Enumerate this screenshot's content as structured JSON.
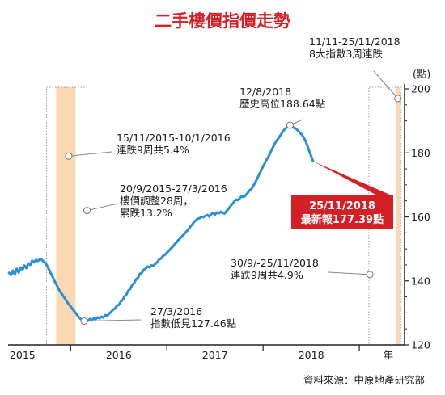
{
  "chart_data": {
    "type": "line",
    "title": "二手樓價指價走勢",
    "ylabel": "(點)",
    "xlabel": "年",
    "ylim": [
      120,
      200
    ],
    "yticks": [
      120,
      140,
      160,
      180,
      200
    ],
    "xlim": [
      2014.85,
      2018.97
    ],
    "year_labels": [
      {
        "label": "2015",
        "x": 2015.0
      },
      {
        "label": "2016",
        "x": 2016.0
      },
      {
        "label": "2017",
        "x": 2017.0
      },
      {
        "label": "2018",
        "x": 2018.0
      }
    ],
    "year_separators": [
      2015.5,
      2016.5,
      2017.5,
      2018.5
    ],
    "series": [
      {
        "color": "#2b8fd6",
        "points": [
          [
            2014.86,
            142.5
          ],
          [
            2014.88,
            141.8
          ],
          [
            2014.9,
            143.2
          ],
          [
            2014.92,
            142.0
          ],
          [
            2014.94,
            143.8
          ],
          [
            2014.96,
            142.6
          ],
          [
            2014.98,
            144.2
          ],
          [
            2015.0,
            143.5
          ],
          [
            2015.02,
            144.8
          ],
          [
            2015.04,
            144.0
          ],
          [
            2015.06,
            145.5
          ],
          [
            2015.08,
            145.0
          ],
          [
            2015.1,
            146.3
          ],
          [
            2015.12,
            145.8
          ],
          [
            2015.14,
            146.6
          ],
          [
            2015.16,
            146.2
          ],
          [
            2015.18,
            146.8
          ],
          [
            2015.2,
            146.6
          ],
          [
            2015.22,
            146.0
          ],
          [
            2015.24,
            145.6
          ],
          [
            2015.26,
            144.4
          ],
          [
            2015.28,
            143.3
          ],
          [
            2015.3,
            142.0
          ],
          [
            2015.32,
            140.8
          ],
          [
            2015.34,
            139.5
          ],
          [
            2015.36,
            138.4
          ],
          [
            2015.38,
            137.2
          ],
          [
            2015.4,
            136.3
          ],
          [
            2015.42,
            135.4
          ],
          [
            2015.44,
            134.5
          ],
          [
            2015.46,
            133.6
          ],
          [
            2015.48,
            132.7
          ],
          [
            2015.5,
            132.0
          ],
          [
            2015.52,
            131.2
          ],
          [
            2015.54,
            130.4
          ],
          [
            2015.56,
            129.7
          ],
          [
            2015.58,
            128.8
          ],
          [
            2015.6,
            128.2
          ],
          [
            2015.62,
            127.8
          ],
          [
            2015.64,
            127.46
          ],
          [
            2015.66,
            128.0
          ],
          [
            2015.68,
            127.5
          ],
          [
            2015.7,
            128.1
          ],
          [
            2015.72,
            127.7
          ],
          [
            2015.74,
            128.3
          ],
          [
            2015.76,
            128.0
          ],
          [
            2015.78,
            128.6
          ],
          [
            2015.8,
            128.3
          ],
          [
            2015.82,
            128.8
          ],
          [
            2015.84,
            128.5
          ],
          [
            2015.86,
            129.3
          ],
          [
            2015.88,
            129.0
          ],
          [
            2015.9,
            129.8
          ],
          [
            2015.92,
            130.3
          ],
          [
            2015.94,
            131.0
          ],
          [
            2015.96,
            131.3
          ],
          [
            2015.98,
            132.2
          ],
          [
            2016.0,
            132.5
          ],
          [
            2016.02,
            133.5
          ],
          [
            2016.04,
            134.0
          ],
          [
            2016.06,
            135.2
          ],
          [
            2016.08,
            135.8
          ],
          [
            2016.1,
            137.0
          ],
          [
            2016.12,
            137.5
          ],
          [
            2016.14,
            138.8
          ],
          [
            2016.16,
            139.3
          ],
          [
            2016.18,
            140.5
          ],
          [
            2016.2,
            141.0
          ],
          [
            2016.22,
            142.2
          ],
          [
            2016.24,
            142.5
          ],
          [
            2016.26,
            143.5
          ],
          [
            2016.28,
            143.8
          ],
          [
            2016.3,
            144.5
          ],
          [
            2016.32,
            144.2
          ],
          [
            2016.34,
            144.9
          ],
          [
            2016.36,
            144.6
          ],
          [
            2016.38,
            145.4
          ],
          [
            2016.4,
            145.8
          ],
          [
            2016.42,
            146.7
          ],
          [
            2016.44,
            147.0
          ],
          [
            2016.46,
            147.8
          ],
          [
            2016.48,
            148.2
          ],
          [
            2016.5,
            148.8
          ],
          [
            2016.52,
            149.4
          ],
          [
            2016.54,
            150.1
          ],
          [
            2016.56,
            150.6
          ],
          [
            2016.58,
            151.5
          ],
          [
            2016.6,
            152.0
          ],
          [
            2016.62,
            152.8
          ],
          [
            2016.64,
            153.3
          ],
          [
            2016.66,
            154.0
          ],
          [
            2016.68,
            154.6
          ],
          [
            2016.7,
            155.3
          ],
          [
            2016.72,
            155.9
          ],
          [
            2016.74,
            156.8
          ],
          [
            2016.76,
            157.5
          ],
          [
            2016.78,
            158.3
          ],
          [
            2016.8,
            158.9
          ],
          [
            2016.82,
            159.4
          ],
          [
            2016.84,
            159.6
          ],
          [
            2016.86,
            160.0
          ],
          [
            2016.88,
            159.9
          ],
          [
            2016.9,
            160.3
          ],
          [
            2016.92,
            160.6
          ],
          [
            2016.94,
            160.1
          ],
          [
            2016.96,
            160.8
          ],
          [
            2016.98,
            161.2
          ],
          [
            2017.0,
            160.7
          ],
          [
            2017.02,
            161.4
          ],
          [
            2017.04,
            161.1
          ],
          [
            2017.06,
            161.6
          ],
          [
            2017.08,
            161.3
          ],
          [
            2017.1,
            161.0
          ],
          [
            2017.12,
            161.8
          ],
          [
            2017.14,
            162.5
          ],
          [
            2017.16,
            163.3
          ],
          [
            2017.18,
            164.0
          ],
          [
            2017.2,
            164.8
          ],
          [
            2017.22,
            165.4
          ],
          [
            2017.24,
            165.2
          ],
          [
            2017.26,
            165.9
          ],
          [
            2017.28,
            166.5
          ],
          [
            2017.3,
            166.2
          ],
          [
            2017.32,
            166.8
          ],
          [
            2017.34,
            167.5
          ],
          [
            2017.36,
            168.3
          ],
          [
            2017.38,
            168.8
          ],
          [
            2017.4,
            169.8
          ],
          [
            2017.42,
            170.8
          ],
          [
            2017.44,
            172.0
          ],
          [
            2017.46,
            173.3
          ],
          [
            2017.48,
            174.5
          ],
          [
            2017.5,
            175.8
          ],
          [
            2017.52,
            176.9
          ],
          [
            2017.54,
            178.0
          ],
          [
            2017.56,
            179.1
          ],
          [
            2017.58,
            180.4
          ],
          [
            2017.6,
            181.6
          ],
          [
            2017.62,
            182.8
          ],
          [
            2017.64,
            183.8
          ],
          [
            2017.66,
            184.6
          ],
          [
            2017.68,
            185.5
          ],
          [
            2017.7,
            186.4
          ],
          [
            2017.72,
            187.2
          ],
          [
            2017.74,
            187.8
          ],
          [
            2017.76,
            188.3
          ],
          [
            2017.78,
            188.64
          ],
          [
            2017.8,
            188.4
          ],
          [
            2017.82,
            187.8
          ],
          [
            2017.84,
            187.6
          ],
          [
            2017.86,
            187.0
          ],
          [
            2017.88,
            186.4
          ],
          [
            2017.9,
            185.8
          ],
          [
            2017.92,
            184.9
          ],
          [
            2017.94,
            183.8
          ],
          [
            2017.96,
            182.2
          ],
          [
            2017.98,
            180.5
          ],
          [
            2018.0,
            179.0
          ],
          [
            2018.02,
            177.39
          ]
        ]
      }
    ],
    "shaded_periods": [
      {
        "from": 2015.35,
        "to": 2015.55,
        "style": "orange"
      },
      {
        "from": 2018.88,
        "to": 2018.93,
        "style": "orange"
      }
    ],
    "dotted_periods": [
      {
        "from": 2015.25,
        "to": 2015.67
      },
      {
        "from": 2018.6,
        "to": 2018.93
      }
    ],
    "annotations": [
      {
        "text": "11/11-25/11/2018\n8大指數3周連跌",
        "point": [
          2018.9,
          197.0
        ]
      },
      {
        "text": "12/8/2018\n歷史高位188.64點",
        "point": [
          2017.78,
          188.64
        ]
      },
      {
        "text": "15/11/2015-10/1/2016\n連跌9周共5.4%",
        "point": [
          2015.48,
          179.0
        ]
      },
      {
        "text": "20/9/2015-27/3/2016\n樓價調整28周，\n累跌13.2%",
        "point": [
          2015.67,
          162.0
        ]
      },
      {
        "text": "30/9/-25/11/2018\n連跌9周共4.9%",
        "point": [
          2018.61,
          142.0
        ]
      },
      {
        "text": "27/3/2016\n指數低見127.46點",
        "point": [
          2015.64,
          127.46
        ]
      }
    ],
    "highlight_label": {
      "text": "25/11/2018\n最新報177.39點",
      "point": [
        2018.02,
        177.39
      ]
    },
    "source": "資料來源：中原地產研究部"
  }
}
